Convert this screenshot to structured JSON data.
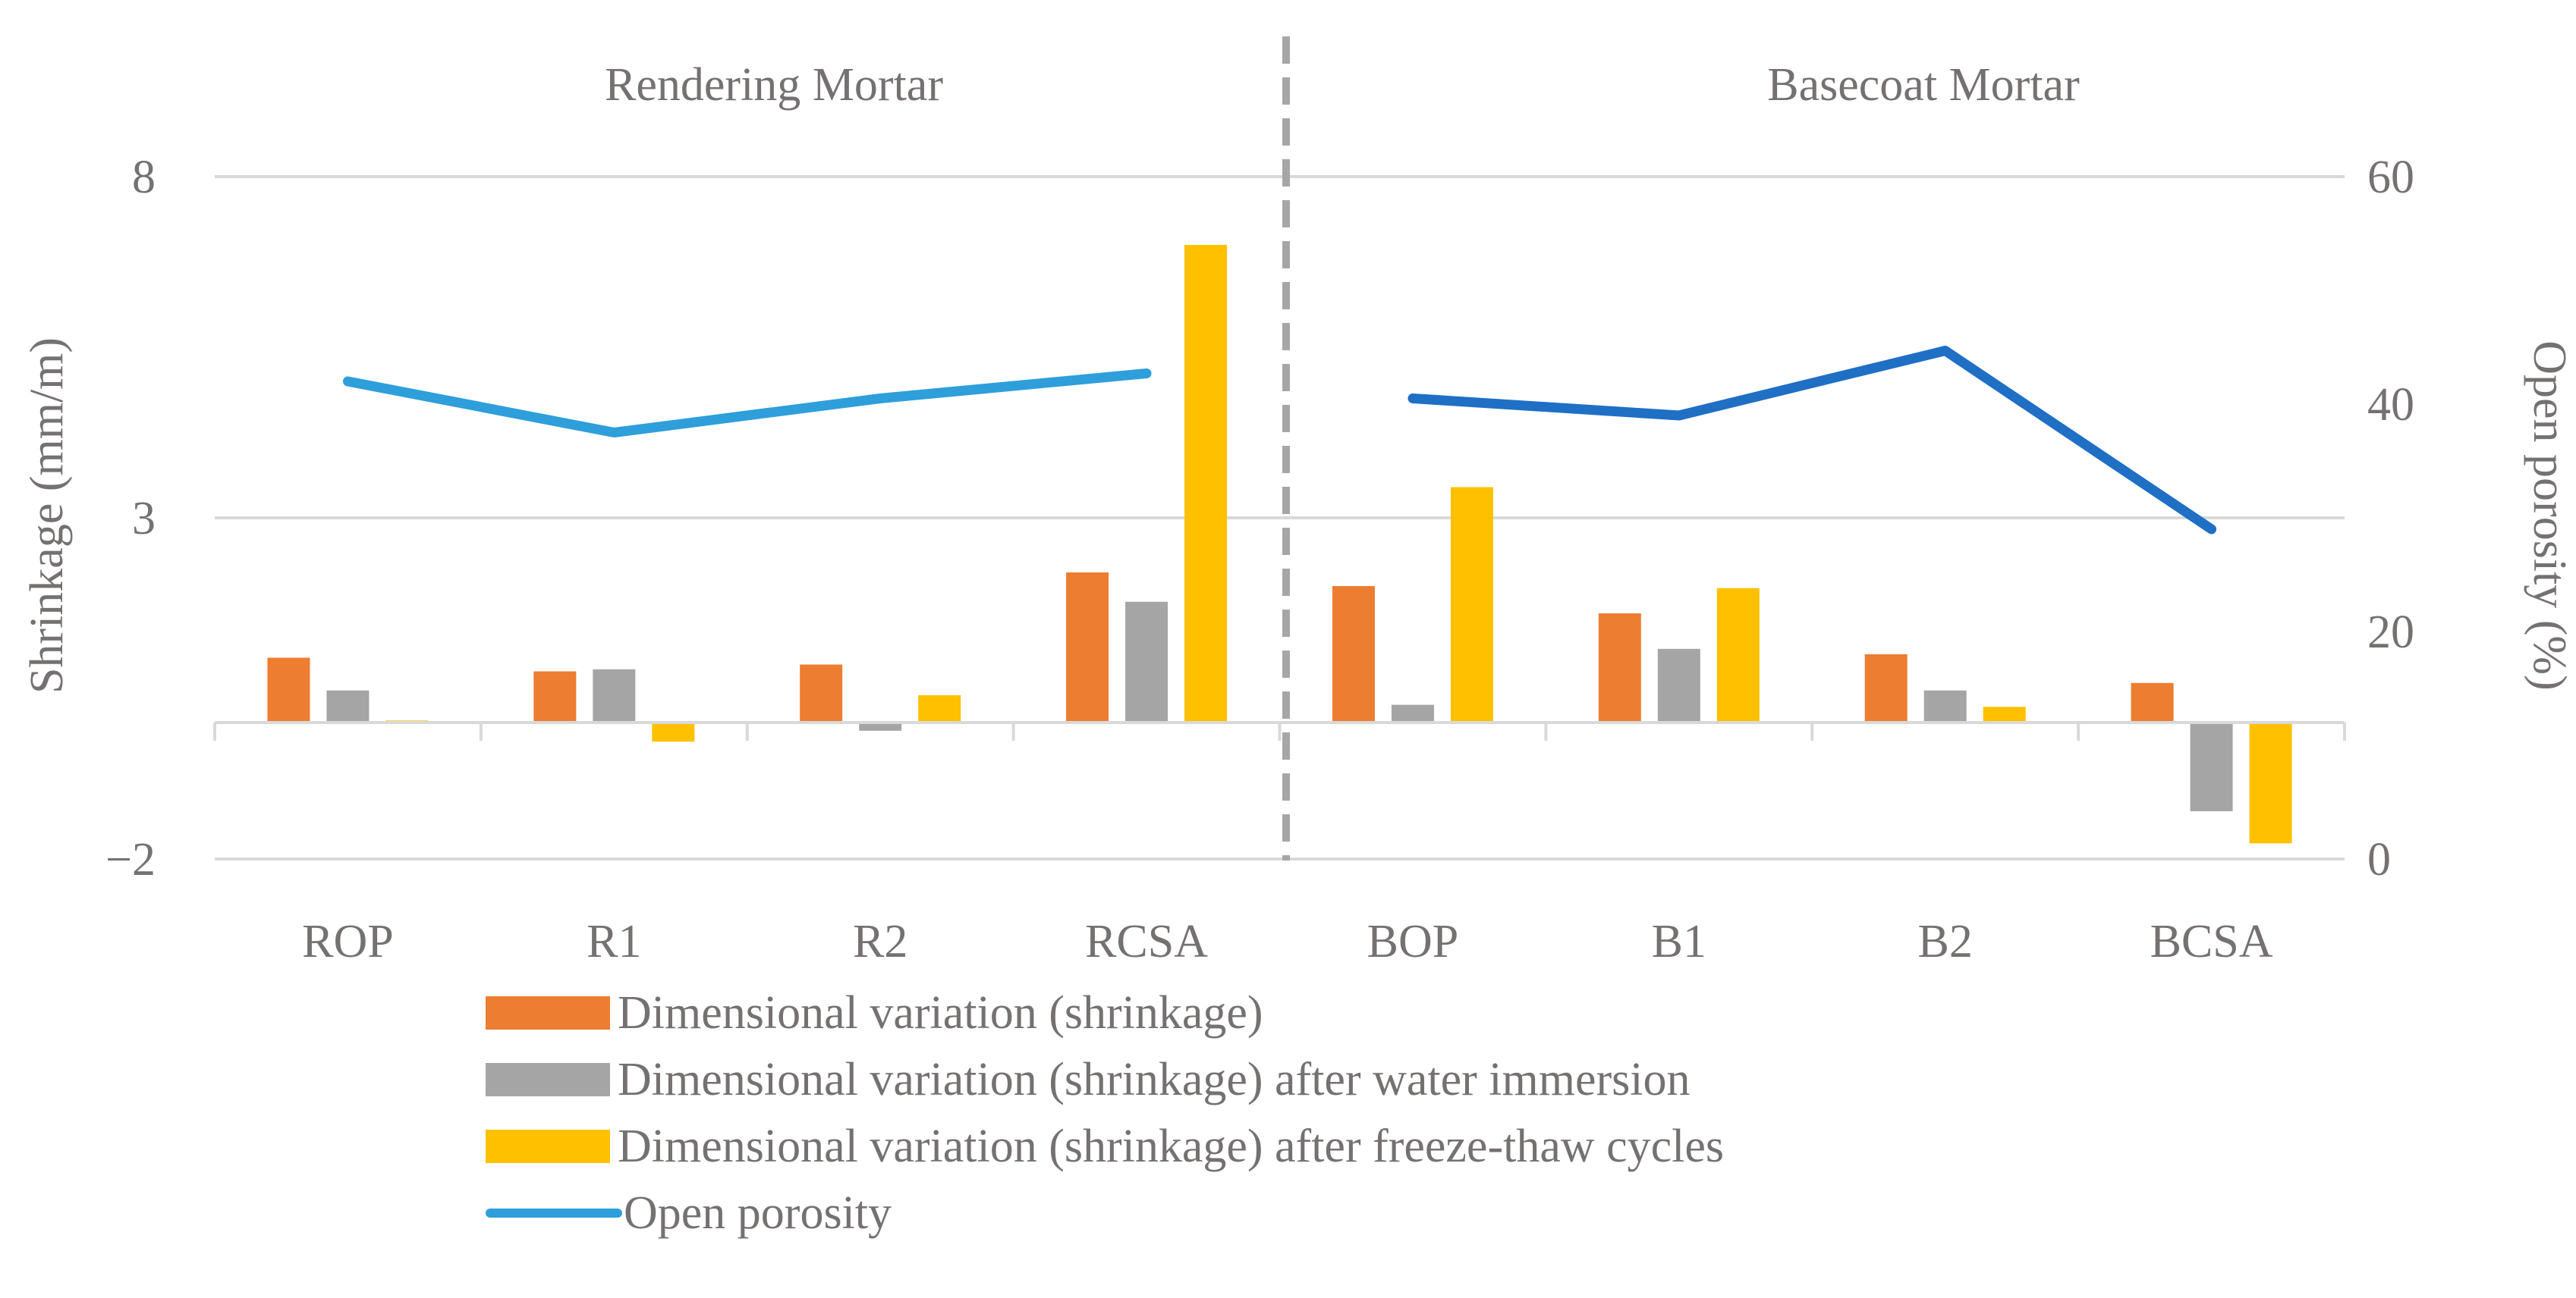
{
  "chart_data": {
    "type": "bar",
    "group_labels": [
      "Rendering Mortar",
      "Basecoat Mortar"
    ],
    "categories": [
      "ROP",
      "R1",
      "R2",
      "RCSA",
      "BOP",
      "B1",
      "B2",
      "BCSA"
    ],
    "y_left": {
      "label": "Shrinkage (mm/m)",
      "range": [
        -2,
        8
      ],
      "ticks": [
        "−2",
        "3",
        "8"
      ],
      "tick_values": [
        -2,
        3,
        8
      ]
    },
    "y_right": {
      "label": "Open porosity (%)",
      "range": [
        0,
        60
      ],
      "ticks": [
        "0",
        "20",
        "40",
        "60"
      ],
      "tick_values": [
        0,
        20,
        40,
        60
      ]
    },
    "series": [
      {
        "name": "Dimensional variation (shrinkage)",
        "type": "bar",
        "axis": "left",
        "color": "#ED7D31",
        "values": [
          0.95,
          0.75,
          0.85,
          2.2,
          2.0,
          1.6,
          1.0,
          0.58
        ]
      },
      {
        "name": "Dimensional variation (shrinkage) after water immersion",
        "type": "bar",
        "axis": "left",
        "color": "#A5A5A5",
        "values": [
          0.47,
          0.78,
          -0.12,
          1.77,
          0.26,
          1.08,
          0.47,
          -1.3
        ]
      },
      {
        "name": "Dimensional variation (shrinkage) after freeze-thaw cycles",
        "type": "bar",
        "axis": "left",
        "color": "#FFC000",
        "values": [
          0.03,
          -0.28,
          0.4,
          7.0,
          3.45,
          1.97,
          0.23,
          -1.77
        ]
      },
      {
        "name": "Open porosity",
        "type": "line",
        "axis": "right",
        "segments": [
          {
            "color": "#2E9FDB",
            "categories": [
              "ROP",
              "R1",
              "R2",
              "RCSA"
            ],
            "values": [
              42.0,
              37.5,
              40.5,
              42.7
            ]
          },
          {
            "color": "#1F6FC5",
            "categories": [
              "BOP",
              "B1",
              "B2",
              "BCSA"
            ],
            "values": [
              40.5,
              39.0,
              44.7,
              29.0
            ]
          }
        ]
      }
    ],
    "grid": true,
    "legend_position": "bottom"
  }
}
